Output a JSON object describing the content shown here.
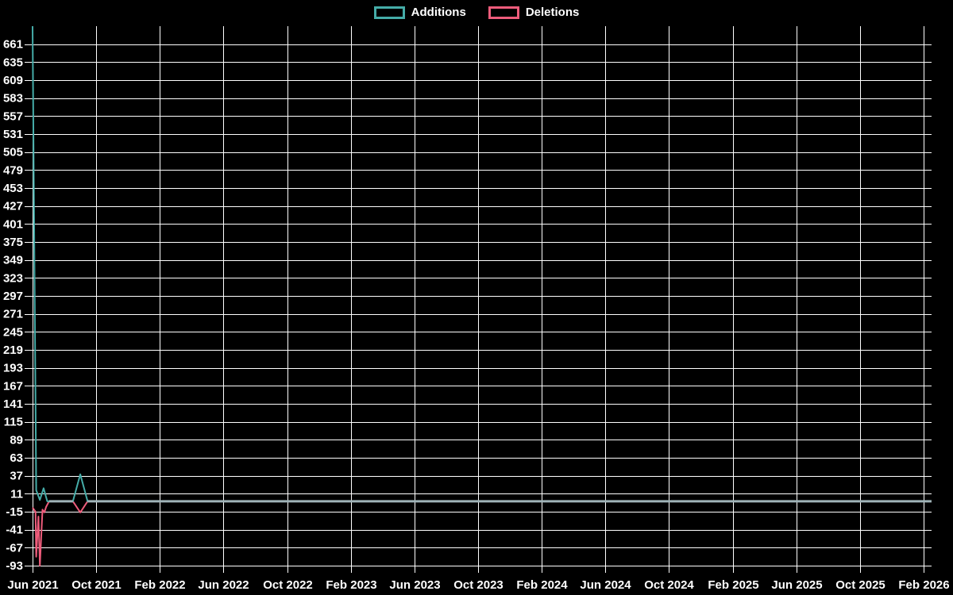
{
  "chart_data": {
    "type": "line",
    "title": "",
    "background": "#000000",
    "grid_color": "#ffffff",
    "text_color": "#ffffff",
    "legend_position": "top-center",
    "x_axis": {
      "tick_labels": [
        "Jun 2021",
        "Oct 2021",
        "Feb 2022",
        "Jun 2022",
        "Oct 2022",
        "Feb 2023",
        "Jun 2023",
        "Oct 2023",
        "Feb 2024",
        "Jun 2024",
        "Oct 2024",
        "Feb 2025",
        "Jun 2025",
        "Oct 2025",
        "Feb 2026"
      ]
    },
    "y_axis": {
      "tick_labels": [
        "661",
        "635",
        "609",
        "583",
        "557",
        "531",
        "505",
        "479",
        "453",
        "427",
        "401",
        "375",
        "349",
        "323",
        "297",
        "271",
        "245",
        "219",
        "193",
        "167",
        "141",
        "115",
        "89",
        "63",
        "37",
        "11",
        "-15",
        "-41",
        "-67",
        "-93"
      ],
      "min": -93,
      "max": 687,
      "tick_step": 26
    },
    "x_unit": "weeks-since-first-point",
    "x_span_weeks": 245,
    "series": [
      {
        "name": "Additions",
        "color": "#45aca8",
        "points": [
          [
            0,
            687
          ],
          [
            1,
            16
          ],
          [
            2,
            2
          ],
          [
            3,
            19
          ],
          [
            4,
            0
          ],
          [
            11,
            0
          ],
          [
            13,
            39
          ],
          [
            15,
            0
          ],
          [
            245,
            0
          ]
        ]
      },
      {
        "name": "Deletions",
        "color": "#ee5c7b",
        "points": [
          [
            0,
            -9
          ],
          [
            0.8,
            -15
          ],
          [
            1,
            -80
          ],
          [
            1.6,
            -22
          ],
          [
            2,
            -93
          ],
          [
            2.7,
            -12
          ],
          [
            3.2,
            -16
          ],
          [
            3.7,
            -8
          ],
          [
            4.5,
            0
          ],
          [
            11,
            0
          ],
          [
            13,
            -16
          ],
          [
            15,
            0
          ],
          [
            245,
            0
          ]
        ]
      }
    ],
    "overlap_zero_line": {
      "color": "#9fb3b8",
      "week_ranges": [
        [
          4.5,
          11
        ],
        [
          15,
          245
        ]
      ]
    }
  }
}
